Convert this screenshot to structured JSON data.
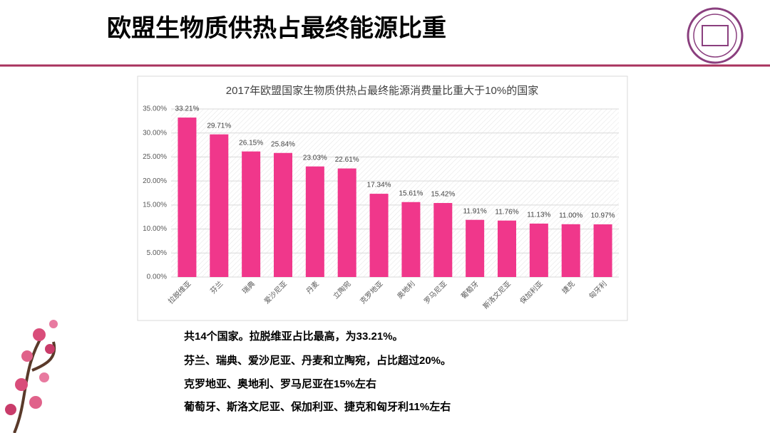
{
  "slide_title": "欧盟生物质供热占最终能源比重",
  "notes": [
    "共14个国家。拉脱维亚占比最高，为33.21%。",
    "芬兰、瑞典、爱沙尼亚、丹麦和立陶宛，占比超过20%。",
    "克罗地亚、奥地利、罗马尼亚在15%左右",
    "葡萄牙、斯洛文尼亚、保加利亚、捷克和匈牙利11%左右"
  ],
  "chart_data": {
    "type": "bar",
    "title": "2017年欧盟国家生物质供热占最终能源消费量比重大于10%的国家",
    "categories": [
      "拉脱维亚",
      "芬兰",
      "瑞典",
      "爱沙尼亚",
      "丹麦",
      "立陶宛",
      "克罗地亚",
      "奥地利",
      "罗马尼亚",
      "葡萄牙",
      "斯洛文尼亚",
      "保加利亚",
      "捷克",
      "匈牙利"
    ],
    "values": [
      33.21,
      29.71,
      26.15,
      25.84,
      23.03,
      22.61,
      17.34,
      15.61,
      15.42,
      11.91,
      11.76,
      11.13,
      11.0,
      10.97
    ],
    "value_labels": [
      "33.21%",
      "29.71%",
      "26.15%",
      "25.84%",
      "23.03%",
      "22.61%",
      "17.34%",
      "15.61%",
      "15.42%",
      "11.91%",
      "11.76%",
      "11.13%",
      "11.00%",
      "10.97%"
    ],
    "color": "#f0378b",
    "ylim": [
      0,
      35
    ],
    "yticks": [
      {
        "value": 0,
        "label": "0.00%"
      },
      {
        "value": 5,
        "label": "5.00%"
      },
      {
        "value": 10,
        "label": "10.00%"
      },
      {
        "value": 15,
        "label": "15.00%"
      },
      {
        "value": 20,
        "label": "20.00%"
      },
      {
        "value": 25,
        "label": "25.00%"
      },
      {
        "value": 30,
        "label": "30.00%"
      },
      {
        "value": 35,
        "label": "35.00%"
      }
    ],
    "grid": true
  }
}
